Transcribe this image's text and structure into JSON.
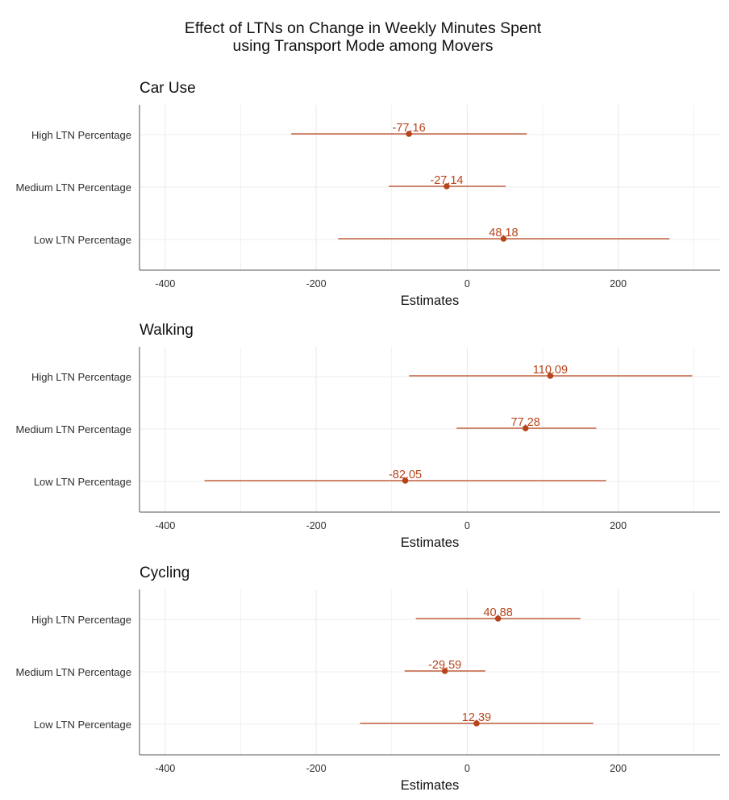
{
  "title_lines": [
    "Effect of LTNs on Change in Weekly Minutes Spent",
    "using Transport Mode among Movers"
  ],
  "accent_color": "#b8441c",
  "chart_data": [
    {
      "type": "forest",
      "title": "Car Use",
      "xlabel": "Estimates",
      "xlim": [
        -434,
        335
      ],
      "xticks": [
        -400,
        -200,
        0,
        200
      ],
      "categories": [
        "High LTN Percentage",
        "Medium LTN Percentage",
        "Low LTN Percentage"
      ],
      "estimates": [
        -77.16,
        -27.14,
        48.18
      ],
      "labels": [
        "-77.16",
        "-27.14",
        "48.18"
      ],
      "ci_low": [
        -233,
        -104,
        -171
      ],
      "ci_high": [
        79,
        51,
        268
      ]
    },
    {
      "type": "forest",
      "title": "Walking",
      "xlabel": "Estimates",
      "xlim": [
        -434,
        335
      ],
      "xticks": [
        -400,
        -200,
        0,
        200
      ],
      "categories": [
        "High LTN Percentage",
        "Medium LTN Percentage",
        "Low LTN Percentage"
      ],
      "estimates": [
        110.09,
        77.28,
        -82.05
      ],
      "labels": [
        "110.09",
        "77.28",
        "-82.05"
      ],
      "ci_low": [
        -77,
        -14,
        -348
      ],
      "ci_high": [
        298,
        171,
        184
      ]
    },
    {
      "type": "forest",
      "title": "Cycling",
      "xlabel": "Estimates",
      "xlim": [
        -434,
        335
      ],
      "xticks": [
        -400,
        -200,
        0,
        200
      ],
      "categories": [
        "High LTN Percentage",
        "Medium LTN Percentage",
        "Low LTN Percentage"
      ],
      "estimates": [
        40.88,
        -29.59,
        12.39
      ],
      "labels": [
        "40.88",
        "-29.59",
        "12.39"
      ],
      "ci_low": [
        -68,
        -83,
        -142
      ],
      "ci_high": [
        150,
        24,
        167
      ]
    }
  ]
}
